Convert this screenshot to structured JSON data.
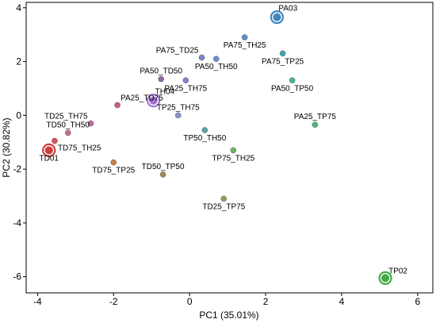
{
  "chart_data": {
    "type": "scatter",
    "xlabel": "PC1 (35.01%)",
    "ylabel": "PC2 (30.82%)",
    "xlim": [
      -4.3,
      6.4
    ],
    "ylim": [
      -6.6,
      4.2
    ],
    "x_ticks": [
      -4,
      -2,
      0,
      2,
      4,
      6
    ],
    "y_ticks": [
      -6,
      -4,
      -2,
      0,
      2,
      4
    ],
    "grid": false,
    "points": [
      {
        "label": "PA03",
        "x": 2.3,
        "y": 3.65,
        "color": "#3b88c2",
        "highlight": true,
        "label_pos": "right-up"
      },
      {
        "label": "PA75_TH25",
        "x": 1.45,
        "y": 2.9,
        "color": "#5b8fc6",
        "label_pos": "below"
      },
      {
        "label": "PA75_TD25",
        "x": 0.32,
        "y": 2.15,
        "color": "#7c84c9",
        "label_pos": "above-left"
      },
      {
        "label": "PA50_TH50",
        "x": 0.7,
        "y": 2.1,
        "color": "#6f8acb",
        "label_pos": "below"
      },
      {
        "label": "PA75_TP25",
        "x": 2.45,
        "y": 2.3,
        "color": "#3fa3a8",
        "label_pos": "below"
      },
      {
        "label": "PA50_TP50",
        "x": 2.7,
        "y": 1.3,
        "color": "#4eb48f",
        "label_pos": "below"
      },
      {
        "label": "PA50_TD50",
        "x": -0.75,
        "y": 1.35,
        "color": "#8c6a9f",
        "label_pos": "above"
      },
      {
        "label": "PA25_TH75",
        "x": -0.1,
        "y": 1.3,
        "color": "#8a7fcb",
        "label_pos": "below"
      },
      {
        "label": "TH04",
        "x": -0.95,
        "y": 0.55,
        "color": "#a36fd0",
        "highlight": true,
        "label_pos": "right-up"
      },
      {
        "label": "PA25_TD75",
        "x": -1.9,
        "y": 0.38,
        "color": "#c45f73",
        "label_pos": "above-right"
      },
      {
        "label": "TP25_TH75",
        "x": -0.3,
        "y": 0.0,
        "color": "#8a90c8",
        "label_pos": "above"
      },
      {
        "label": "TD25_TH75",
        "x": -2.6,
        "y": -0.3,
        "color": "#c16d9a",
        "label_pos": "above-left"
      },
      {
        "label": "TD50_TH50",
        "x": -3.2,
        "y": -0.65,
        "color": "#c76e84",
        "label_pos": "above"
      },
      {
        "label": "TP50_TH50",
        "x": 0.4,
        "y": -0.55,
        "color": "#5ea49e",
        "label_pos": "below"
      },
      {
        "label": "PA25_TP75",
        "x": 3.3,
        "y": -0.35,
        "color": "#4fb47f",
        "label_pos": "above"
      },
      {
        "label": "TD75_TH25",
        "x": -3.55,
        "y": -0.95,
        "color": "#d0555c",
        "label_pos": "below-right"
      },
      {
        "label": "TD01",
        "x": -3.7,
        "y": -1.3,
        "color": "#d53a3a",
        "highlight": true,
        "label_pos": "below"
      },
      {
        "label": "TP75_TH25",
        "x": 1.15,
        "y": -1.3,
        "color": "#6bb363",
        "label_pos": "below"
      },
      {
        "label": "TD75_TP25",
        "x": -2.0,
        "y": -1.75,
        "color": "#c08049",
        "label_pos": "below"
      },
      {
        "label": "TD50_TP50",
        "x": -0.7,
        "y": -2.2,
        "color": "#9e8a54",
        "label_pos": "above"
      },
      {
        "label": "TD25_TP75",
        "x": 0.9,
        "y": -3.1,
        "color": "#86a454",
        "label_pos": "below"
      },
      {
        "label": "TP02",
        "x": 5.15,
        "y": -6.05,
        "color": "#3fae3f",
        "highlight": true,
        "label_pos": "above-right"
      }
    ]
  }
}
